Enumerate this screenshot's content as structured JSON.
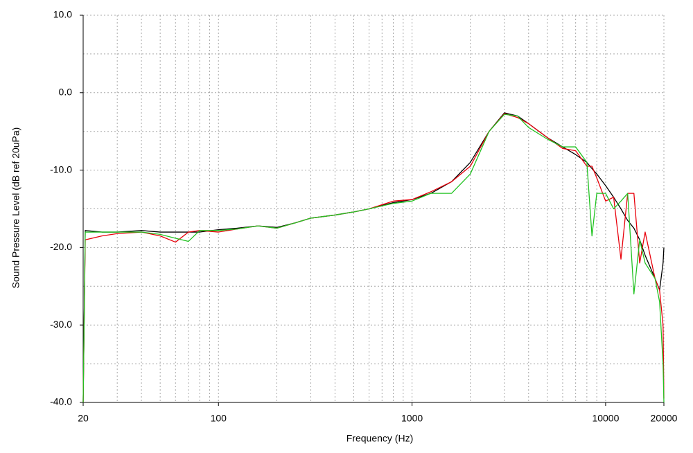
{
  "chart_data": {
    "type": "line",
    "xlabel": "Frequency (Hz)",
    "ylabel": "Sound Pressure Level (dB ref 20uPa)",
    "xscale": "log",
    "grid": true,
    "x": [
      20,
      20.5,
      25,
      30,
      40,
      50,
      60,
      70,
      80,
      100,
      125,
      160,
      200,
      250,
      300,
      400,
      500,
      600,
      800,
      1000,
      1250,
      1600,
      2000,
      2500,
      3000,
      3500,
      4000,
      5000,
      6000,
      7000,
      8000,
      8500,
      9000,
      10000,
      11000,
      12000,
      13000,
      14000,
      15000,
      16000,
      18000,
      19000,
      19800,
      20000
    ],
    "series": [
      {
        "color": "#000000",
        "values": [
          -40,
          -17.8,
          -18,
          -18,
          -17.8,
          -18,
          -18,
          -18,
          -18,
          -17.7,
          -17.5,
          -17.2,
          -17.4,
          -16.8,
          -16.2,
          -15.8,
          -15.4,
          -15,
          -14.2,
          -13.8,
          -13,
          -11.5,
          -9,
          -5,
          -2.6,
          -3,
          -4,
          -5.8,
          -7,
          -8,
          -9,
          -9.8,
          -10.5,
          -12,
          -13.5,
          -15,
          -16.5,
          -17.5,
          -19,
          -21,
          -24,
          -25.5,
          -22,
          -20
        ]
      },
      {
        "color": "#e8000b",
        "values": [
          -40,
          -19,
          -18.5,
          -18.2,
          -18,
          -18.5,
          -19.3,
          -18,
          -17.8,
          -18,
          -17.6,
          -17.2,
          -17.5,
          -16.8,
          -16.2,
          -15.8,
          -15.4,
          -15,
          -14,
          -13.8,
          -12.8,
          -11.5,
          -9.5,
          -5,
          -2.7,
          -3.2,
          -4,
          -5.8,
          -7.2,
          -7.5,
          -9.5,
          -9.5,
          -11,
          -14,
          -13.5,
          -21.5,
          -13,
          -13,
          -22,
          -18,
          -24,
          -25.5,
          -30,
          -39.5
        ]
      },
      {
        "color": "#22c322",
        "values": [
          -40,
          -18,
          -18,
          -18,
          -18,
          -18.3,
          -18.8,
          -19.2,
          -17.8,
          -17.8,
          -17.6,
          -17.2,
          -17.5,
          -16.8,
          -16.2,
          -15.8,
          -15.4,
          -15,
          -14.3,
          -14,
          -13,
          -13,
          -10.5,
          -5,
          -2.8,
          -3,
          -4.5,
          -6,
          -7,
          -7,
          -9,
          -18.5,
          -13,
          -13,
          -15,
          -14,
          -13,
          -26,
          -19,
          -22,
          -24,
          -27,
          -35,
          -40
        ]
      }
    ],
    "xlim": [
      20,
      20000
    ],
    "xticks": [
      20,
      100,
      1000,
      10000,
      20000
    ],
    "xminorticks": [
      30,
      40,
      50,
      60,
      70,
      80,
      90,
      200,
      300,
      400,
      500,
      600,
      700,
      800,
      900,
      2000,
      3000,
      4000,
      5000,
      6000,
      7000,
      8000,
      9000
    ],
    "ylim": [
      -40,
      10
    ],
    "yticks": [
      {
        "value": -40,
        "label": "-40.0"
      },
      {
        "value": -30,
        "label": "-30.0"
      },
      {
        "value": -20,
        "label": "-20.0"
      },
      {
        "value": -10,
        "label": "-10.0"
      },
      {
        "value": 0,
        "label": "0.0"
      },
      {
        "value": 10,
        "label": "10.0"
      }
    ],
    "yminorticks": [
      -35,
      -25,
      -15,
      -5,
      5
    ]
  }
}
